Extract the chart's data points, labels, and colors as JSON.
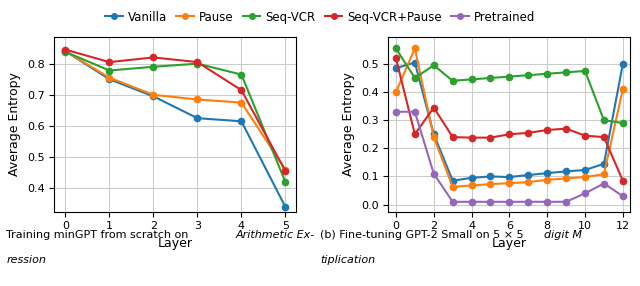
{
  "left_plot": {
    "xlabel": "Layer",
    "ylabel": "Average Entropy",
    "xlim": [
      -0.25,
      5.25
    ],
    "ylim": [
      0.325,
      0.885
    ],
    "yticks": [
      0.4,
      0.5,
      0.6,
      0.7,
      0.8
    ],
    "xticks": [
      0,
      1,
      2,
      3,
      4,
      5
    ],
    "series": [
      {
        "label": "Vanilla",
        "x": [
          0,
          1,
          2,
          3,
          4,
          5
        ],
        "y": [
          0.84,
          0.75,
          0.695,
          0.625,
          0.615,
          0.34
        ],
        "color": "#1f77b4"
      },
      {
        "label": "Pause",
        "x": [
          0,
          1,
          2,
          3,
          4,
          5
        ],
        "y": [
          0.84,
          0.755,
          0.7,
          0.685,
          0.675,
          0.46
        ],
        "color": "#ff7f0e"
      },
      {
        "label": "Seq-VCR",
        "x": [
          0,
          1,
          2,
          3,
          4,
          5
        ],
        "y": [
          0.838,
          0.778,
          0.79,
          0.8,
          0.765,
          0.42
        ],
        "color": "#2ca02c"
      },
      {
        "label": "Seq-VCR+Pause",
        "x": [
          0,
          1,
          2,
          3,
          4,
          5
        ],
        "y": [
          0.845,
          0.805,
          0.82,
          0.805,
          0.715,
          0.455
        ],
        "color": "#d62728"
      }
    ]
  },
  "right_plot": {
    "xlabel": "Layer",
    "ylabel": "Average Entropy",
    "xlim": [
      -0.4,
      12.4
    ],
    "ylim": [
      -0.025,
      0.595
    ],
    "yticks": [
      0.0,
      0.1,
      0.2,
      0.3,
      0.4,
      0.5
    ],
    "xticks": [
      0,
      2,
      4,
      6,
      8,
      10,
      12
    ],
    "series": [
      {
        "label": "Vanilla",
        "x": [
          0,
          1,
          2,
          3,
          4,
          5,
          6,
          7,
          8,
          9,
          10,
          11,
          12
        ],
        "y": [
          0.485,
          0.505,
          0.25,
          0.085,
          0.095,
          0.1,
          0.098,
          0.105,
          0.112,
          0.118,
          0.123,
          0.145,
          0.5
        ],
        "color": "#1f77b4"
      },
      {
        "label": "Pause",
        "x": [
          0,
          1,
          2,
          3,
          4,
          5,
          6,
          7,
          8,
          9,
          10,
          11,
          12
        ],
        "y": [
          0.4,
          0.555,
          0.24,
          0.063,
          0.068,
          0.073,
          0.076,
          0.08,
          0.088,
          0.093,
          0.098,
          0.108,
          0.41
        ],
        "color": "#ff7f0e"
      },
      {
        "label": "Seq-VCR",
        "x": [
          0,
          1,
          2,
          3,
          4,
          5,
          6,
          7,
          8,
          9,
          10,
          11,
          12
        ],
        "y": [
          0.555,
          0.45,
          0.495,
          0.44,
          0.445,
          0.45,
          0.455,
          0.46,
          0.465,
          0.47,
          0.475,
          0.3,
          0.29
        ],
        "color": "#2ca02c"
      },
      {
        "label": "Seq-VCR+Pause",
        "x": [
          0,
          1,
          2,
          3,
          4,
          5,
          6,
          7,
          8,
          9,
          10,
          11,
          12
        ],
        "y": [
          0.52,
          0.25,
          0.345,
          0.24,
          0.238,
          0.238,
          0.25,
          0.255,
          0.265,
          0.27,
          0.245,
          0.24,
          0.085
        ],
        "color": "#d62728"
      },
      {
        "label": "Pretrained",
        "x": [
          0,
          1,
          2,
          3,
          4,
          5,
          6,
          7,
          8,
          9,
          10,
          11,
          12
        ],
        "y": [
          0.33,
          0.33,
          0.11,
          0.01,
          0.01,
          0.01,
          0.01,
          0.01,
          0.01,
          0.01,
          0.04,
          0.075,
          0.03
        ],
        "color": "#9467bd"
      }
    ]
  },
  "legend_labels": [
    "Vanilla",
    "Pause",
    "Seq-VCR",
    "Seq-VCR+Pause",
    "Pretrained"
  ],
  "legend_colors": [
    "#1f77b4",
    "#ff7f0e",
    "#2ca02c",
    "#d62728",
    "#9467bd"
  ],
  "background_color": "#ffffff",
  "grid_color": "#cccccc",
  "linewidth": 1.5,
  "markersize": 4.5
}
